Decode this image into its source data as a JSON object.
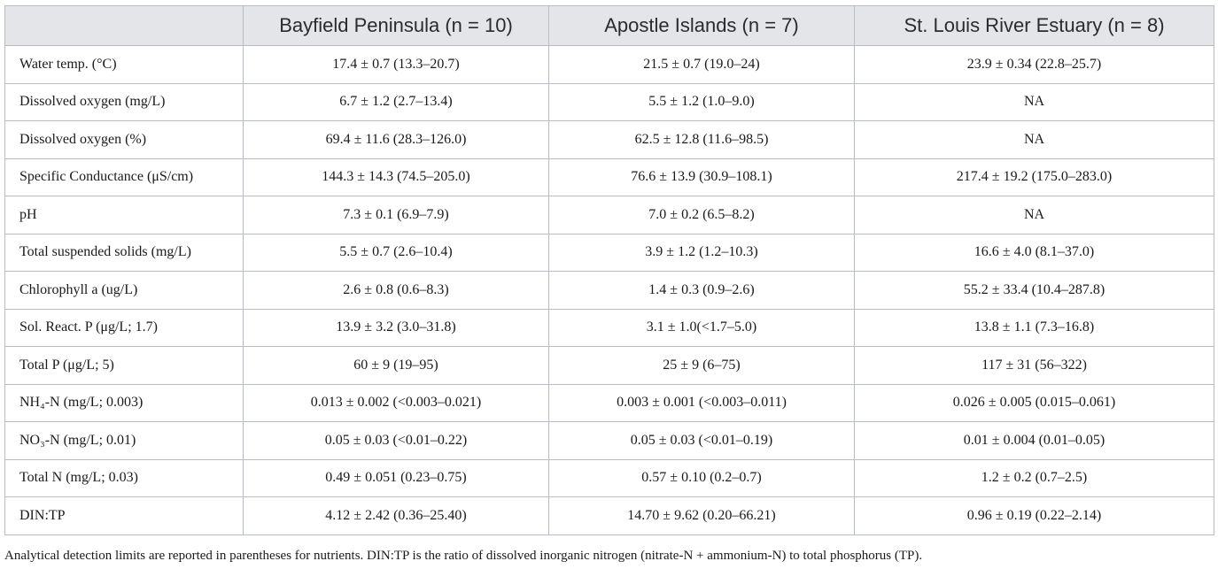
{
  "table": {
    "headers": [
      "",
      "Bayfield Peninsula (n = 10)",
      "Apostle Islands (n = 7)",
      "St. Louis River Estuary (n = 8)"
    ],
    "rows": [
      [
        "Water temp. (°C)",
        "17.4 ± 0.7 (13.3–20.7)",
        "21.5 ± 0.7 (19.0–24)",
        "23.9 ± 0.34 (22.8–25.7)"
      ],
      [
        "Dissolved oxygen (mg/L)",
        "6.7 ± 1.2 (2.7–13.4)",
        "5.5 ± 1.2 (1.0–9.0)",
        "NA"
      ],
      [
        "Dissolved oxygen (%)",
        "69.4 ± 11.6 (28.3–126.0)",
        "62.5 ± 12.8 (11.6–98.5)",
        "NA"
      ],
      [
        "Specific Conductance (μS/cm)",
        "144.3 ± 14.3 (74.5–205.0)",
        "76.6 ± 13.9 (30.9–108.1)",
        "217.4 ± 19.2 (175.0–283.0)"
      ],
      [
        "pH",
        "7.3 ± 0.1 (6.9–7.9)",
        "7.0 ± 0.2 (6.5–8.2)",
        "NA"
      ],
      [
        "Total suspended solids (mg/L)",
        "5.5 ± 0.7 (2.6–10.4)",
        "3.9 ± 1.2 (1.2–10.3)",
        "16.6 ± 4.0 (8.1–37.0)"
      ],
      [
        "Chlorophyll a (ug/L)",
        "2.6 ± 0.8 (0.6–8.3)",
        "1.4 ± 0.3 (0.9–2.6)",
        "55.2 ± 33.4 (10.4–287.8)"
      ],
      [
        "Sol. React. P (μg/L; 1.7)",
        "13.9 ± 3.2 (3.0–31.8)",
        "3.1 ± 1.0(<1.7–5.0)",
        "13.8 ± 1.1 (7.3–16.8)"
      ],
      [
        "Total P (μg/L; 5)",
        "60 ± 9 (19–95)",
        "25 ± 9 (6–75)",
        "117 ± 31 (56–322)"
      ],
      [
        "NH₄-N (mg/L; 0.003)",
        "0.013 ± 0.002 (<0.003–0.021)",
        "0.003 ± 0.001 (<0.003–0.011)",
        "0.026 ± 0.005 (0.015–0.061)"
      ],
      [
        "NO₃-N (mg/L; 0.01)",
        "0.05 ± 0.03 (<0.01–0.22)",
        "0.05 ± 0.03 (<0.01–0.19)",
        "0.01 ± 0.004 (0.01–0.05)"
      ],
      [
        "Total N (mg/L; 0.03)",
        "0.49 ± 0.051 (0.23–0.75)",
        "0.57 ± 0.10 (0.2–0.7)",
        "1.2 ± 0.2 (0.7–2.5)"
      ],
      [
        "DIN:TP",
        "4.12 ± 2.42 (0.36–25.40)",
        "14.70 ± 9.62 (0.20–66.21)",
        "0.96 ± 0.19 (0.22–2.14)"
      ]
    ]
  },
  "footnote": "Analytical detection limits are reported in parentheses for nutrients. DIN:TP is the ratio of dissolved inorganic nitrogen (nitrate-N + ammonium-N) to total phosphorus (TP).",
  "colors": {
    "header_bg": "#e3e5e8",
    "border": "#b9bcc0",
    "text": "#1a1a1a"
  }
}
